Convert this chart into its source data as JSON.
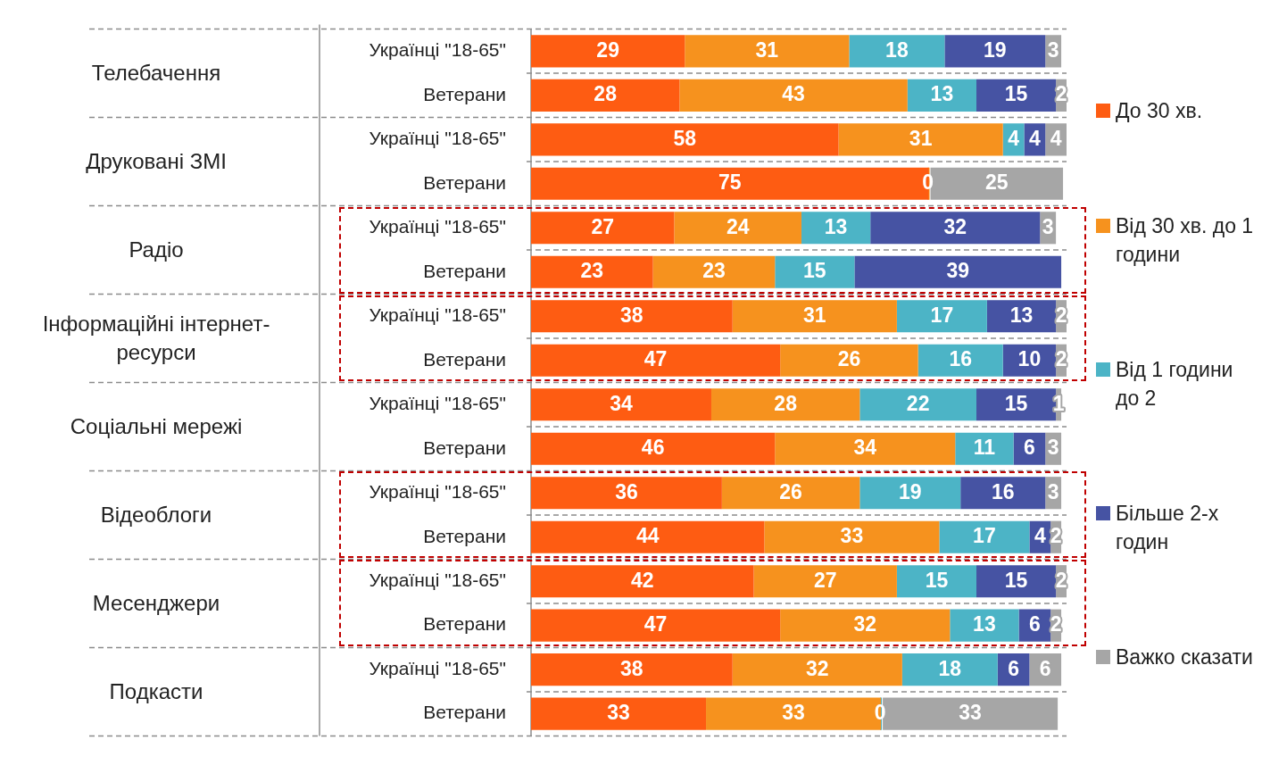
{
  "chart_data": {
    "type": "bar",
    "orientation": "horizontal",
    "stacked": true,
    "legend": "right",
    "tick_labels": "y",
    "xlim": [
      0,
      101
    ],
    "categories": [
      "Українці \"18-65\"",
      "Ветерани",
      "Українці \"18-65\"",
      "Ветерани",
      "Українці \"18-65\"",
      "Ветерани",
      "Українці \"18-65\"",
      "Ветерани",
      "Українці \"18-65\"",
      "Ветерани",
      "Українці \"18-65\"",
      "Ветерани",
      "Українці \"18-65\"",
      "Ветерани",
      "Українці \"18-65\"",
      "Ветерани"
    ],
    "annotations": [
      "Телебачення",
      "Друковані ЗМІ",
      "Радіо",
      "Інформаційні інтернет-ресурси",
      "Соціальні мережі",
      "Відеоблоги",
      "Месенджери",
      "Подкасти"
    ],
    "series": [
      {
        "name": "До 30 хв.",
        "color": "#fe5c12",
        "values": [
          29,
          28,
          58,
          75,
          27,
          23,
          38,
          47,
          34,
          46,
          36,
          44,
          42,
          47,
          38,
          33
        ],
        "value_labels": [
          "29",
          "28",
          "58",
          "75",
          "27",
          "23",
          "38",
          "47",
          "34",
          "46",
          "36",
          "44",
          "42",
          "47",
          "38",
          "33"
        ]
      },
      {
        "name": "Від 30 хв. до 1 години",
        "color": "#f6921e",
        "values": [
          31,
          43,
          31,
          0,
          24,
          23,
          31,
          26,
          28,
          34,
          26,
          33,
          27,
          32,
          32,
          33
        ],
        "value_labels": [
          "31",
          "43",
          "31",
          "0",
          "24",
          "23",
          "31",
          "26",
          "28",
          "34",
          "26",
          "33",
          "27",
          "32",
          "32",
          "33"
        ]
      },
      {
        "name": "Від 1 години до 2",
        "color": "#4cb4c6",
        "values": [
          18,
          13,
          4,
          null,
          13,
          15,
          17,
          16,
          22,
          11,
          19,
          17,
          15,
          13,
          18,
          0
        ],
        "value_labels": [
          "18",
          "13",
          "4",
          null,
          "13",
          "15",
          "17",
          "16",
          "22",
          "11",
          "19",
          "17",
          "15",
          "13",
          "18",
          "0"
        ]
      },
      {
        "name": "Більше 2-х годин",
        "color": "#4653a3",
        "values": [
          19,
          15,
          4,
          null,
          32,
          39,
          13,
          10,
          15,
          6,
          16,
          4,
          15,
          6,
          6,
          null
        ],
        "value_labels": [
          "19",
          "15",
          "4",
          null,
          "32",
          "39",
          "13",
          "10",
          "15",
          "6",
          "16",
          "4",
          "15",
          "6",
          "6",
          null
        ]
      },
      {
        "name": "Важко сказати",
        "color": "#a6a6a6",
        "values": [
          3,
          2,
          4,
          25,
          3,
          null,
          2,
          2,
          1,
          3,
          3,
          2,
          2,
          2,
          6,
          33
        ],
        "value_labels": [
          "3",
          "2",
          "4",
          "25",
          "3",
          null,
          "2",
          "2",
          "1",
          "3",
          "3",
          "2",
          "2",
          "2",
          "6",
          "33"
        ]
      }
    ]
  }
}
